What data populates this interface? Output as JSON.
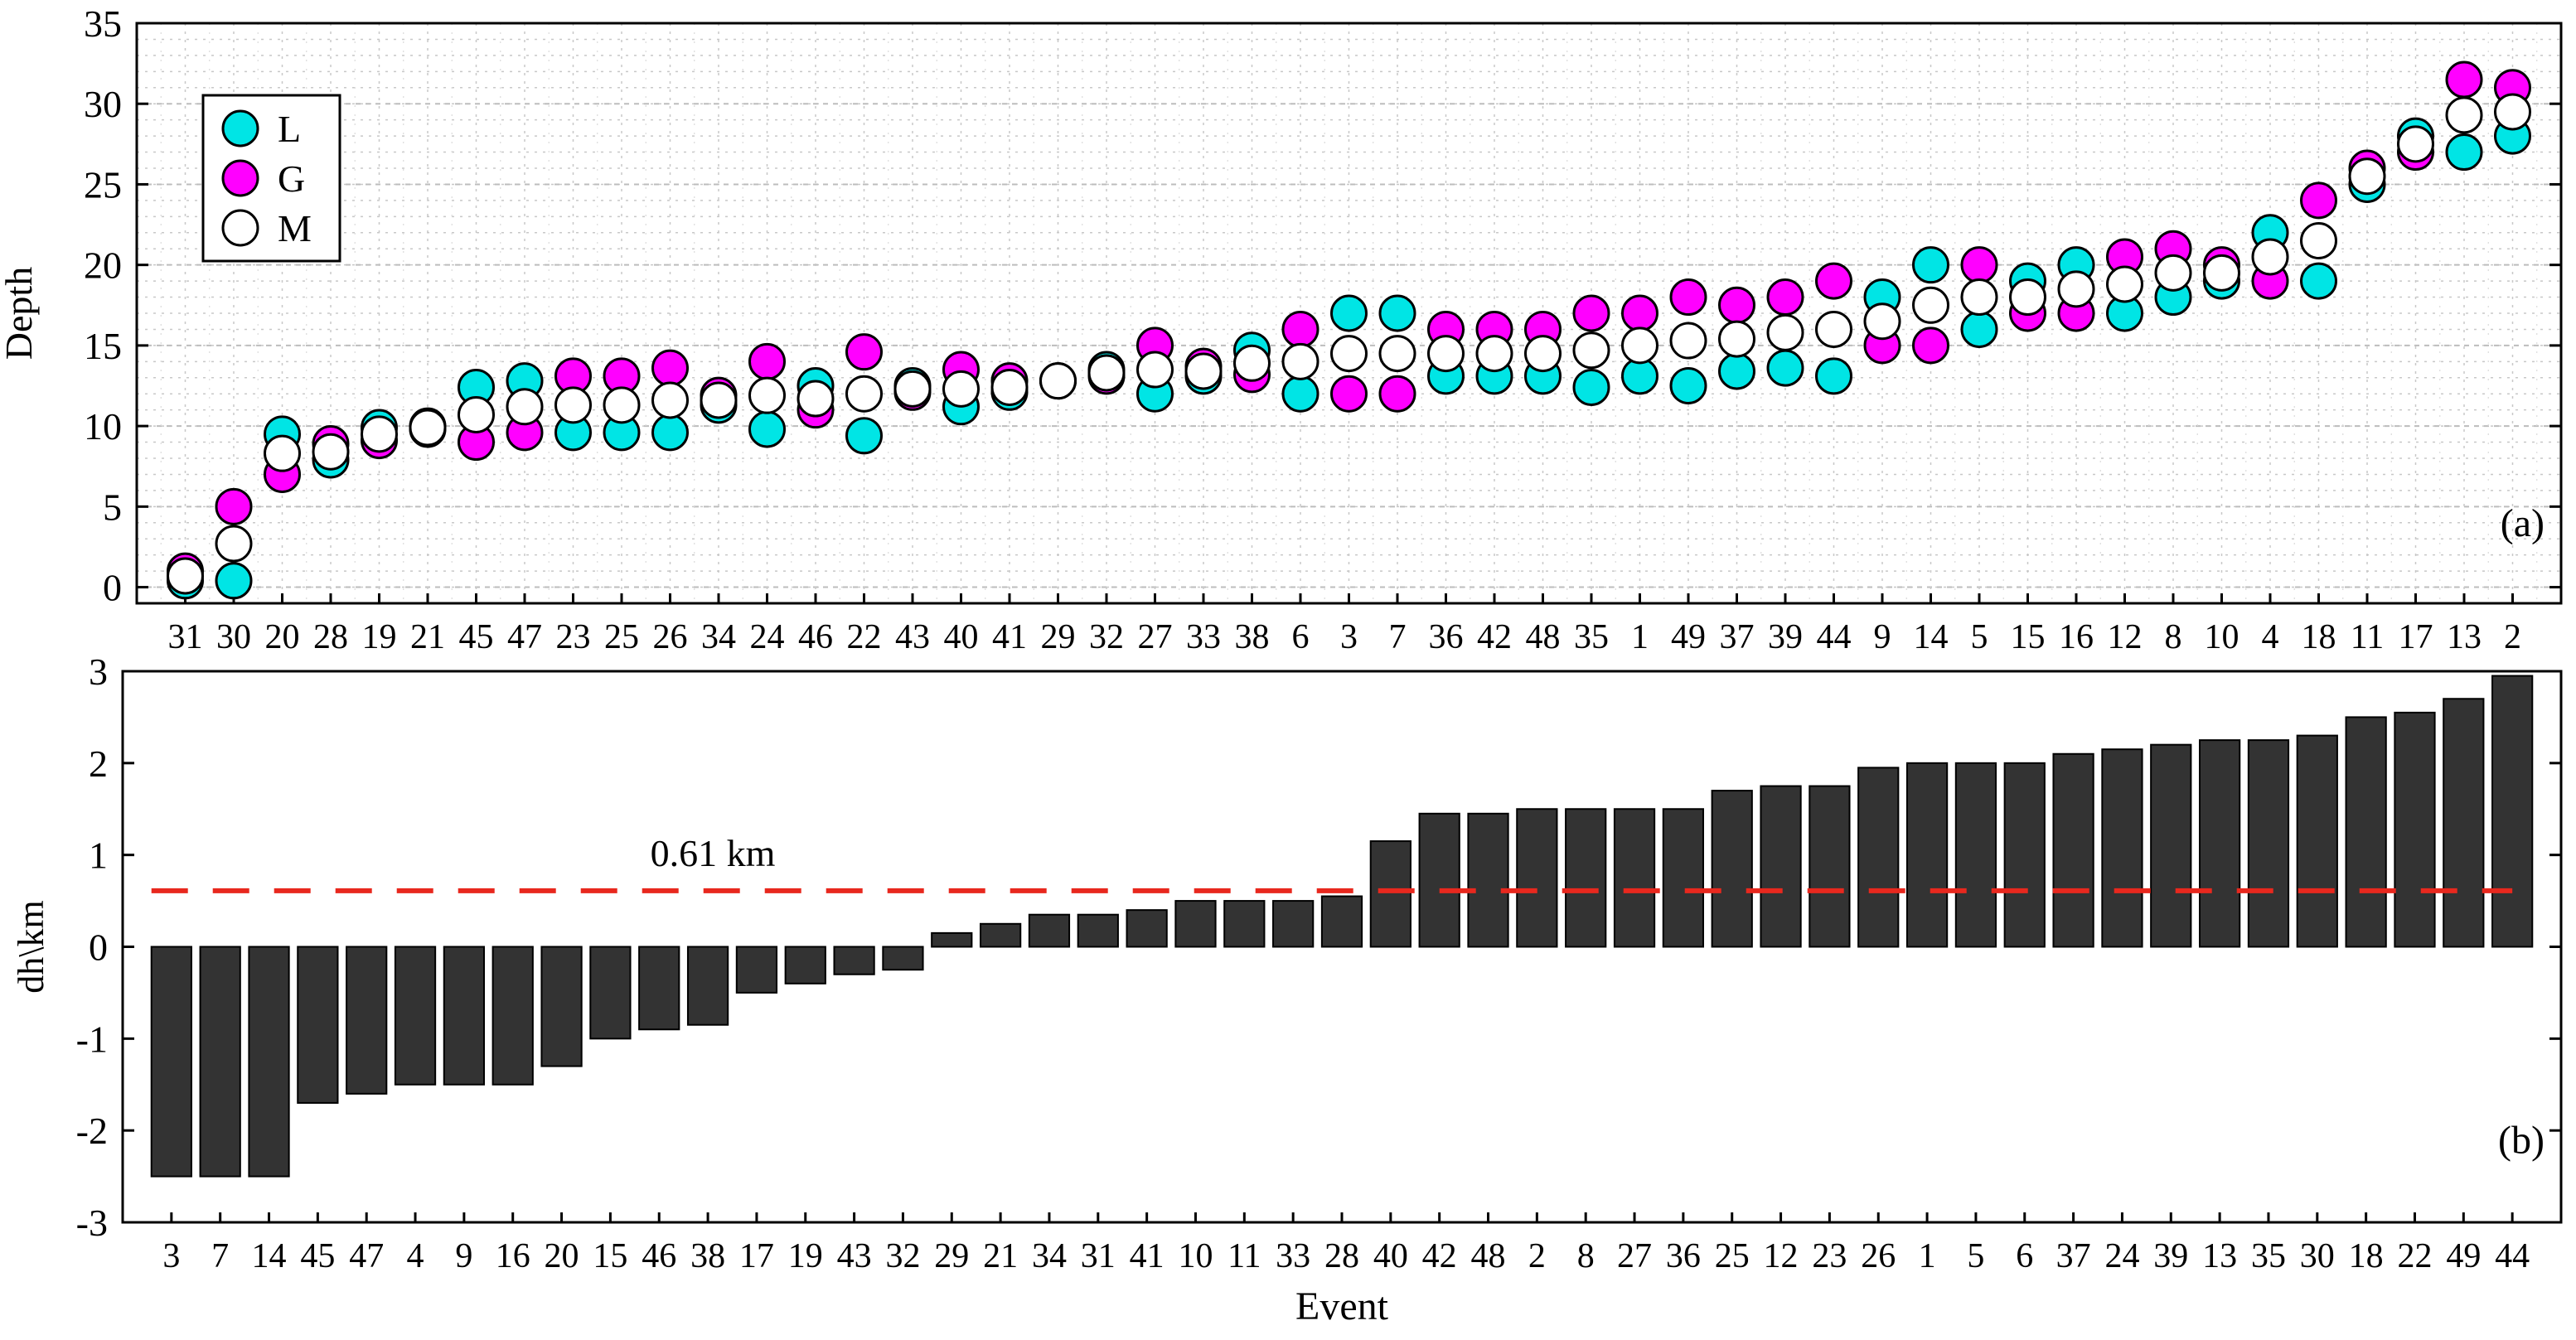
{
  "figure": {
    "xlabel": "Event"
  },
  "chart_data": [
    {
      "type": "scatter",
      "panel_label": "(a)",
      "ylabel": "Depth",
      "ylim": [
        -1,
        35
      ],
      "yticks": [
        0,
        5,
        10,
        15,
        20,
        25,
        30,
        35
      ],
      "grid": true,
      "legend_position": "top-left",
      "categories": [
        "31",
        "30",
        "20",
        "28",
        "19",
        "21",
        "45",
        "47",
        "23",
        "25",
        "26",
        "34",
        "24",
        "46",
        "22",
        "43",
        "40",
        "41",
        "29",
        "32",
        "27",
        "33",
        "38",
        "6",
        "3",
        "7",
        "36",
        "42",
        "48",
        "35",
        "1",
        "49",
        "37",
        "39",
        "44",
        "9",
        "14",
        "5",
        "15",
        "16",
        "12",
        "8",
        "10",
        "4",
        "18",
        "11",
        "17",
        "13",
        "2"
      ],
      "series": [
        {
          "name": "L",
          "color": "#00e5e5",
          "values": [
            0.4,
            0.4,
            9.5,
            7.9,
            9.9,
            9.8,
            12.4,
            12.8,
            9.6,
            9.6,
            9.6,
            11.3,
            9.8,
            12.5,
            9.4,
            12.5,
            11.2,
            12.1,
            12.8,
            13.5,
            12.0,
            13.1,
            14.7,
            12.0,
            17.0,
            17.0,
            13.1,
            13.1,
            13.1,
            12.4,
            13.1,
            12.5,
            13.4,
            13.6,
            13.1,
            18.0,
            20.0,
            16.0,
            19.0,
            20.0,
            17.0,
            18.0,
            19.0,
            22.0,
            19.0,
            25.0,
            28.0,
            27.0,
            28.0
          ]
        },
        {
          "name": "G",
          "color": "#ff00ff",
          "values": [
            1.0,
            5.0,
            7.0,
            8.9,
            9.1,
            10.0,
            9.0,
            9.6,
            13.1,
            13.1,
            13.6,
            11.9,
            14.0,
            11.0,
            14.6,
            12.1,
            13.5,
            12.8,
            12.8,
            13.1,
            15.0,
            13.7,
            13.2,
            16.0,
            12.0,
            12.0,
            16.0,
            16.0,
            16.0,
            17.0,
            17.0,
            18.0,
            17.5,
            18.0,
            19.0,
            15.0,
            15.0,
            20.0,
            17.0,
            17.0,
            20.5,
            21.0,
            20.0,
            19.0,
            24.0,
            26.0,
            27.0,
            31.5,
            31.0
          ]
        },
        {
          "name": "M",
          "color": "#ffffff",
          "values": [
            0.7,
            2.7,
            8.3,
            8.4,
            9.5,
            9.9,
            10.7,
            11.2,
            11.3,
            11.3,
            11.6,
            11.6,
            11.9,
            11.7,
            12.0,
            12.3,
            12.3,
            12.4,
            12.8,
            13.3,
            13.5,
            13.4,
            13.9,
            14.0,
            14.5,
            14.5,
            14.5,
            14.5,
            14.5,
            14.7,
            15.0,
            15.3,
            15.4,
            15.8,
            16.0,
            16.5,
            17.5,
            18.0,
            18.0,
            18.5,
            18.8,
            19.5,
            19.5,
            20.5,
            21.5,
            25.5,
            27.5,
            29.3,
            29.5
          ]
        }
      ]
    },
    {
      "type": "bar",
      "panel_label": "(b)",
      "ylabel": "dh\\km",
      "xlabel": "Event",
      "ylim": [
        -3,
        3
      ],
      "yticks": [
        -3,
        -2,
        -1,
        0,
        1,
        2,
        3
      ],
      "grid": false,
      "bar_color": "#333333",
      "categories": [
        "3",
        "7",
        "14",
        "45",
        "47",
        "4",
        "9",
        "16",
        "20",
        "15",
        "46",
        "38",
        "17",
        "19",
        "43",
        "32",
        "29",
        "21",
        "34",
        "31",
        "41",
        "10",
        "11",
        "33",
        "28",
        "40",
        "42",
        "48",
        "2",
        "8",
        "27",
        "36",
        "25",
        "12",
        "23",
        "26",
        "1",
        "5",
        "6",
        "37",
        "24",
        "39",
        "13",
        "35",
        "30",
        "18",
        "22",
        "49",
        "44"
      ],
      "values": [
        -2.5,
        -2.5,
        -2.5,
        -1.7,
        -1.6,
        -1.5,
        -1.5,
        -1.5,
        -1.3,
        -1.0,
        -0.9,
        -0.85,
        -0.5,
        -0.4,
        -0.3,
        -0.25,
        0.15,
        0.25,
        0.35,
        0.35,
        0.4,
        0.5,
        0.5,
        0.5,
        0.55,
        1.15,
        1.45,
        1.45,
        1.5,
        1.5,
        1.5,
        1.5,
        1.7,
        1.75,
        1.75,
        1.95,
        2.0,
        2.0,
        2.0,
        2.1,
        2.15,
        2.2,
        2.25,
        2.25,
        2.3,
        2.5,
        2.55,
        2.7,
        2.95
      ],
      "reference_line": {
        "value": 0.61,
        "label": "0.61 km",
        "color": "#e8281e"
      }
    }
  ]
}
